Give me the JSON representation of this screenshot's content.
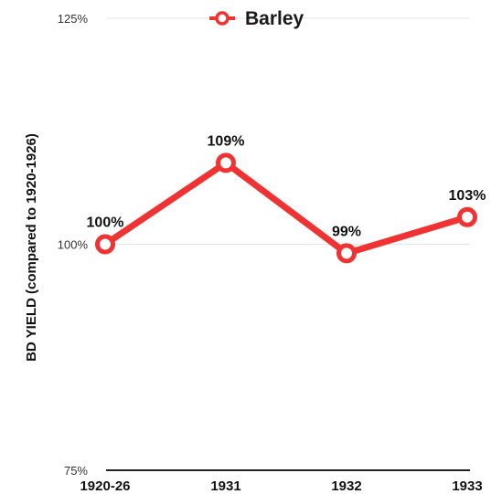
{
  "chart_data": {
    "type": "line",
    "categories": [
      "1920-26",
      "1931",
      "1932",
      "1933"
    ],
    "series": [
      {
        "name": "Barley",
        "values": [
          100,
          109,
          99,
          103
        ],
        "color": "#f03232"
      }
    ],
    "data_labels": [
      "100%",
      "109%",
      "99%",
      "103%"
    ],
    "ylabel": "BD YIELD (compared to 1920-1926)",
    "ylim": [
      75,
      125
    ],
    "yticks": [
      {
        "value": 125,
        "label": "125%"
      },
      {
        "value": 100,
        "label": "100%"
      },
      {
        "value": 75,
        "label": "75%"
      }
    ],
    "grid": true,
    "legend": "top-center"
  }
}
